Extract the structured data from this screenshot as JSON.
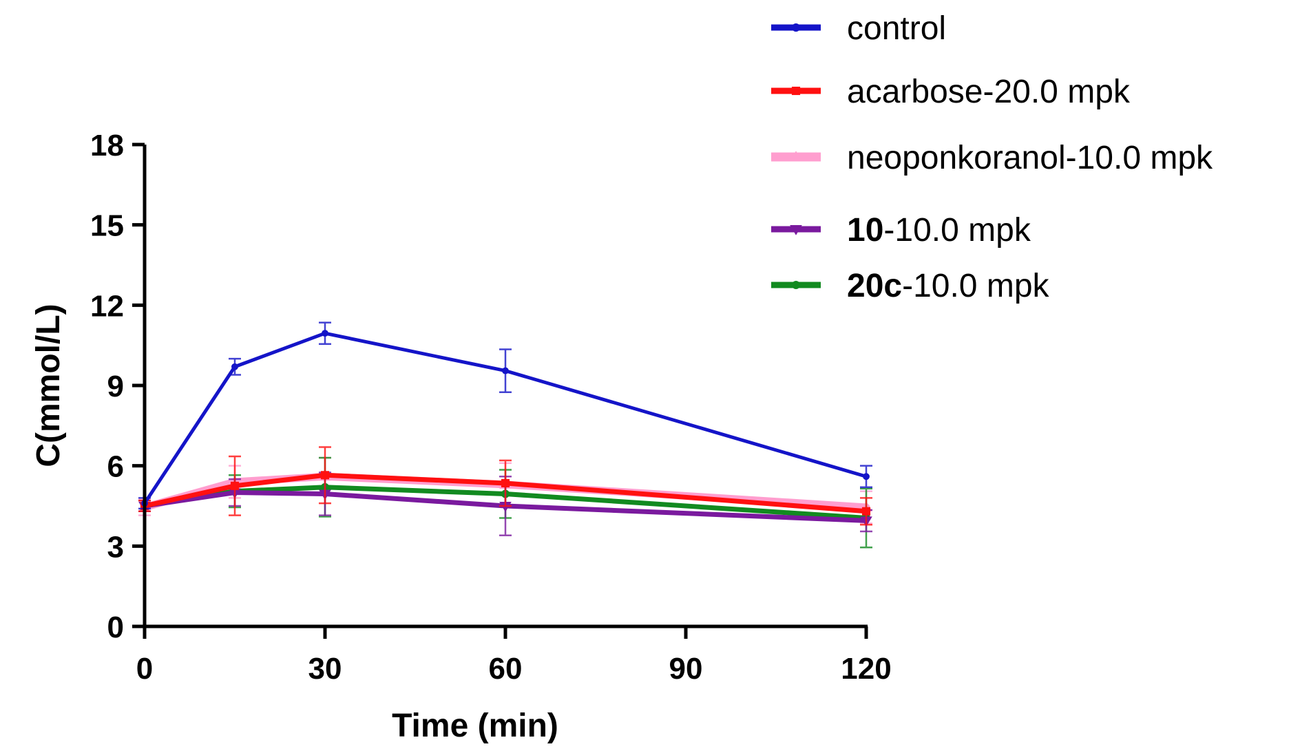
{
  "chart_data": {
    "type": "line",
    "title": "",
    "xlabel": "Time (min)",
    "ylabel": "C(mmol/L)",
    "xlim": [
      0,
      120
    ],
    "ylim": [
      0,
      18
    ],
    "xticks": [
      "0",
      "30",
      "60",
      "90",
      "120"
    ],
    "yticks": [
      "0",
      "3",
      "6",
      "9",
      "12",
      "15",
      "18"
    ],
    "x": [
      0,
      15,
      30,
      60,
      120
    ],
    "grid": false,
    "legend_position": "top-right",
    "series": [
      {
        "name": "control",
        "bold": "",
        "rest": "control",
        "color": "#1414c8",
        "marker": "circle",
        "values": [
          4.6,
          9.7,
          10.95,
          9.55,
          5.6
        ],
        "errors": [
          0.2,
          0.3,
          0.4,
          0.8,
          0.4
        ]
      },
      {
        "name": "acarbose-20.0 mpk",
        "bold": "",
        "rest": "acarbose-20.0 mpk",
        "color": "#ff1010",
        "marker": "square",
        "values": [
          4.5,
          5.25,
          5.65,
          5.35,
          4.3
        ],
        "errors": [
          0.2,
          1.1,
          1.05,
          0.85,
          0.5
        ]
      },
      {
        "name": "neoponkoranol-10.0 mpk",
        "bold": "",
        "rest": "neoponkoranol-10.0 mpk",
        "color": "#ff9ecf",
        "marker": "triangle-up",
        "values": [
          4.45,
          5.4,
          5.6,
          5.3,
          4.45
        ],
        "errors": [
          0.3,
          0.6,
          0.7,
          0.8,
          0.6
        ]
      },
      {
        "name": "10-10.0 mpk",
        "bold": "10",
        "rest": "-10.0 mpk",
        "color": "#7a1a9e",
        "marker": "triangle-down",
        "values": [
          4.5,
          5.0,
          4.95,
          4.5,
          3.95
        ],
        "errors": [
          0.2,
          0.5,
          0.8,
          1.1,
          0.4
        ]
      },
      {
        "name": "20c-10.0 mpk",
        "bold": "20c",
        "rest": "-10.0 mpk",
        "color": "#128a20",
        "marker": "circle",
        "values": [
          4.5,
          5.05,
          5.2,
          4.95,
          4.05
        ],
        "errors": [
          0.2,
          0.6,
          1.1,
          0.9,
          1.1
        ]
      }
    ]
  }
}
